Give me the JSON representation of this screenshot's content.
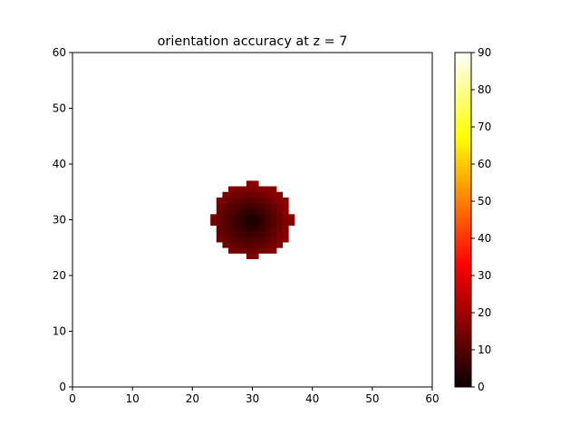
{
  "chart_data": {
    "type": "heatmap",
    "title": "orientation accuracy at z = 7",
    "xlabel": "",
    "ylabel": "",
    "xlim": [
      0,
      60
    ],
    "ylim": [
      0,
      60
    ],
    "xticks": [
      0,
      10,
      20,
      30,
      40,
      50,
      60
    ],
    "yticks": [
      0,
      10,
      20,
      30,
      40,
      50,
      60
    ],
    "colormap": "hot",
    "colorbar": {
      "range": [
        0,
        90
      ],
      "ticks": [
        0,
        10,
        20,
        30,
        40,
        50,
        60,
        70,
        80,
        90
      ]
    },
    "grid": false,
    "cell_size": 1,
    "masked_background": true,
    "region": {
      "shape": "disk",
      "center": [
        30,
        30
      ],
      "radius": 6.6,
      "value_range": [
        0,
        16
      ],
      "value_at_center": 1,
      "value_at_edge": 16
    }
  }
}
